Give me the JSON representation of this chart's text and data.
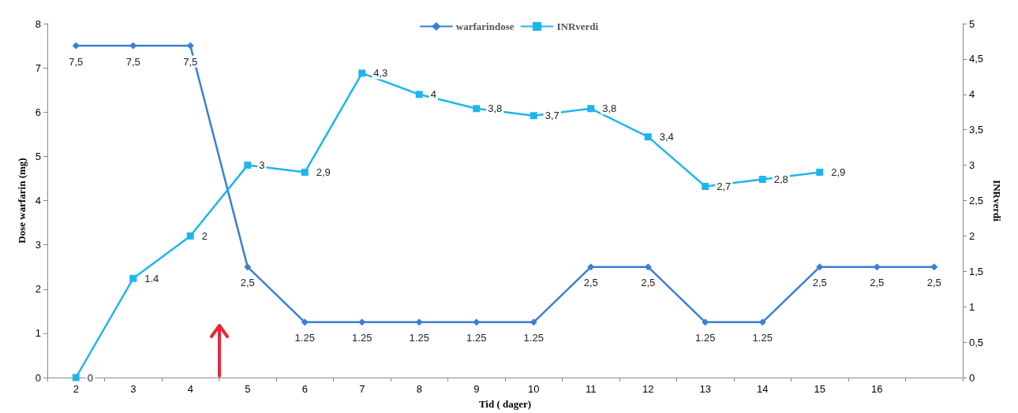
{
  "chart_data": {
    "type": "line",
    "xlabel": "Tid ( dager)",
    "ylabel": "Dose warfarin (mg)",
    "y2label": "INRverdi",
    "categories": [
      "2",
      "3",
      "4",
      "5",
      "6",
      "7",
      "8",
      "9",
      "10",
      "11",
      "12",
      "13",
      "14",
      "15",
      "16",
      null
    ],
    "series": [
      {
        "name": "warfarindose",
        "color": "#3a7fd5",
        "marker": "diamond",
        "values": [
          7.5,
          7.5,
          7.5,
          2.5,
          1.25,
          1.25,
          1.25,
          1.25,
          1.25,
          2.5,
          2.5,
          1.25,
          1.25,
          2.5,
          2.5,
          2.5
        ],
        "value_labels": [
          "7,5",
          "7,5",
          "7,5",
          "2,5",
          "1.25",
          "1.25",
          "1.25",
          "1.25",
          "1.25",
          "2,5",
          "2,5",
          "1.25",
          "1.25",
          "2,5",
          "2,5",
          "2,5"
        ]
      },
      {
        "name": "INRverdi",
        "color": "#1fb5ec",
        "marker": "square",
        "axis": "y2",
        "values": [
          0,
          1.4,
          2,
          3,
          2.9,
          4.3,
          4,
          3.8,
          3.7,
          3.8,
          3.4,
          2.7,
          2.8,
          2.9,
          null,
          null
        ],
        "value_labels": [
          "0",
          "1.4",
          "2",
          "3",
          "2,9",
          "4,3",
          "4",
          "3,8",
          "3,7",
          "3,8",
          "3,4",
          "2,7",
          "2,8",
          "2,9",
          null,
          null
        ]
      }
    ],
    "ylim": [
      0,
      8
    ],
    "yticks": [
      0,
      1,
      2,
      3,
      4,
      5,
      6,
      7,
      8
    ],
    "y2lim": [
      0,
      5
    ],
    "y2ticks": [
      0,
      {
        "value": 0.5,
        "label": "0,5"
      },
      1,
      {
        "value": 1.5,
        "label": "1,5"
      },
      2,
      {
        "value": 2.5,
        "label": "2,5"
      },
      3,
      {
        "value": 3.5,
        "label": "3,5"
      },
      4,
      {
        "value": 4.5,
        "label": "4,5"
      },
      5
    ],
    "grid": false,
    "legend": "top",
    "line_style": "solid"
  }
}
